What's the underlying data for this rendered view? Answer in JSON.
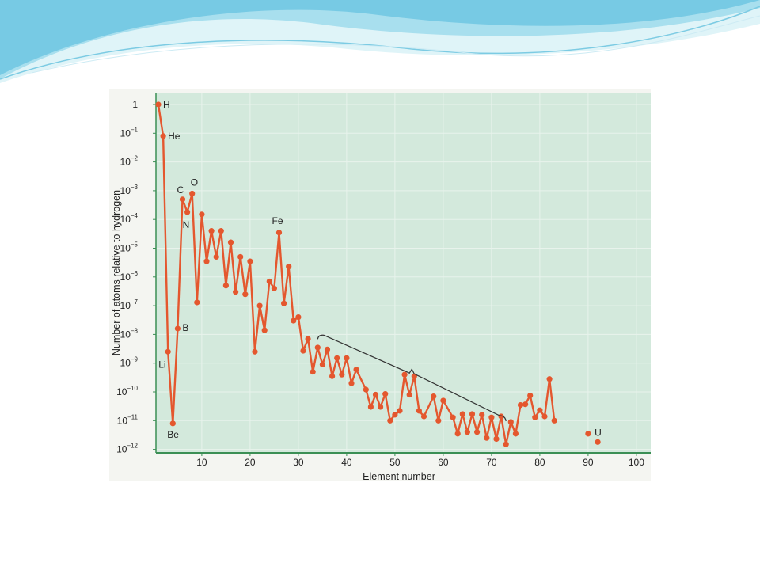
{
  "colors": {
    "plot_background": "#d3e9dc",
    "grid": "#e8f3ec",
    "series": "#e4572e",
    "axis": "#3b8f55",
    "bracket": "#333333",
    "header_wave_light": "#dff4f8",
    "header_wave_mid": "#a8dfee",
    "header_wave_dark": "#4fb8dc"
  },
  "chart_data": {
    "type": "line",
    "xlabel": "Element number",
    "ylabel": "Number of atoms relative to hydrogen",
    "xlim": [
      0,
      100
    ],
    "ylim_log10": [
      -12,
      0
    ],
    "yscale": "log",
    "grid": true,
    "x_ticks": [
      10,
      20,
      30,
      40,
      50,
      60,
      70,
      80,
      90,
      100
    ],
    "y_ticks": [
      {
        "base": "1",
        "exp": ""
      },
      {
        "base": "10",
        "exp": "−1"
      },
      {
        "base": "10",
        "exp": "−2"
      },
      {
        "base": "10",
        "exp": "−3"
      },
      {
        "base": "10",
        "exp": "−4"
      },
      {
        "base": "10",
        "exp": "−5"
      },
      {
        "base": "10",
        "exp": "−6"
      },
      {
        "base": "10",
        "exp": "−7"
      },
      {
        "base": "10",
        "exp": "−8"
      },
      {
        "base": "10",
        "exp": "−9"
      },
      {
        "base": "10",
        "exp": "−10"
      },
      {
        "base": "10",
        "exp": "−11"
      },
      {
        "base": "10",
        "exp": "−12"
      }
    ],
    "series": [
      {
        "name": "",
        "points": [
          [
            1,
            1.0
          ],
          [
            2,
            0.08
          ],
          [
            3,
            2.5e-09
          ],
          [
            4,
            8e-12
          ],
          [
            5,
            1.6e-08
          ],
          [
            6,
            0.0005
          ],
          [
            7,
            0.00018
          ],
          [
            8,
            0.0008
          ],
          [
            9,
            1.3e-07
          ],
          [
            10,
            0.00015
          ],
          [
            11,
            3.5e-06
          ],
          [
            12,
            4e-05
          ],
          [
            13,
            5e-06
          ],
          [
            14,
            4e-05
          ],
          [
            15,
            5e-07
          ],
          [
            16,
            1.6e-05
          ],
          [
            17,
            3e-07
          ],
          [
            18,
            5e-06
          ],
          [
            19,
            2.5e-07
          ],
          [
            20,
            3.5e-06
          ],
          [
            21,
            2.5e-09
          ],
          [
            22,
            1e-07
          ],
          [
            23,
            1.4e-08
          ],
          [
            24,
            7e-07
          ],
          [
            25,
            4e-07
          ],
          [
            26,
            3.5e-05
          ],
          [
            27,
            1.2e-07
          ],
          [
            28,
            2.3e-06
          ],
          [
            29,
            3e-08
          ],
          [
            30,
            4e-08
          ],
          [
            31,
            2.7e-09
          ],
          [
            32,
            7e-09
          ],
          [
            33,
            5e-10
          ],
          [
            34,
            3.5e-09
          ],
          [
            35,
            9e-10
          ],
          [
            36,
            3e-09
          ],
          [
            37,
            3.5e-10
          ],
          [
            38,
            1.5e-09
          ],
          [
            39,
            4e-10
          ],
          [
            40,
            1.5e-09
          ],
          [
            41,
            2e-10
          ],
          [
            42,
            6e-10
          ],
          [
            44,
            1.2e-10
          ],
          [
            45,
            3e-11
          ],
          [
            46,
            8e-11
          ],
          [
            47,
            3e-11
          ],
          [
            48,
            8.5e-11
          ],
          [
            49,
            1e-11
          ],
          [
            50,
            1.6e-11
          ],
          [
            51,
            2.2e-11
          ],
          [
            52,
            4e-10
          ],
          [
            53,
            8e-11
          ],
          [
            54,
            3.5e-10
          ],
          [
            55,
            2.2e-11
          ],
          [
            56,
            1.4e-11
          ],
          [
            58,
            7e-11
          ],
          [
            59,
            1e-11
          ],
          [
            60,
            5e-11
          ],
          [
            62,
            1.3e-11
          ],
          [
            63,
            3.5e-12
          ],
          [
            64,
            1.7e-11
          ],
          [
            65,
            4e-12
          ],
          [
            66,
            1.7e-11
          ],
          [
            67,
            4e-12
          ],
          [
            68,
            1.6e-11
          ],
          [
            69,
            2.5e-12
          ],
          [
            70,
            1.3e-11
          ],
          [
            71,
            2.3e-12
          ],
          [
            72,
            1.4e-11
          ],
          [
            73,
            1.5e-12
          ],
          [
            74,
            9e-12
          ],
          [
            75,
            3.5e-12
          ],
          [
            76,
            3.5e-11
          ],
          [
            77,
            3.7e-11
          ],
          [
            78,
            7.5e-11
          ],
          [
            79,
            1.3e-11
          ],
          [
            80,
            2.3e-11
          ],
          [
            81,
            1.4e-11
          ],
          [
            82,
            2.8e-10
          ],
          [
            83,
            1e-11
          ]
        ]
      },
      {
        "name": "",
        "points": [
          [
            90,
            3.5e-12
          ],
          [
            92,
            1.8e-12
          ]
        ]
      }
    ],
    "annotations": [
      {
        "text": "H",
        "x": 1,
        "y": 1.0
      },
      {
        "text": "He",
        "x": 2,
        "y": 0.08
      },
      {
        "text": "Li",
        "x": 3,
        "y": 2.5e-09
      },
      {
        "text": "Be",
        "x": 4,
        "y": 8e-12
      },
      {
        "text": "B",
        "x": 5,
        "y": 1.6e-08
      },
      {
        "text": "C",
        "x": 6,
        "y": 0.0005
      },
      {
        "text": "N",
        "x": 7,
        "y": 0.00018
      },
      {
        "text": "O",
        "x": 8,
        "y": 0.0008
      },
      {
        "text": "Fe",
        "x": 26,
        "y": 3.5e-05
      },
      {
        "text": "U",
        "x": 92,
        "y": 1.8e-12
      }
    ],
    "bracket": {
      "x_from": 34,
      "x_to": 73,
      "y_from": 1e-08,
      "y_to": 1.4e-11
    }
  }
}
